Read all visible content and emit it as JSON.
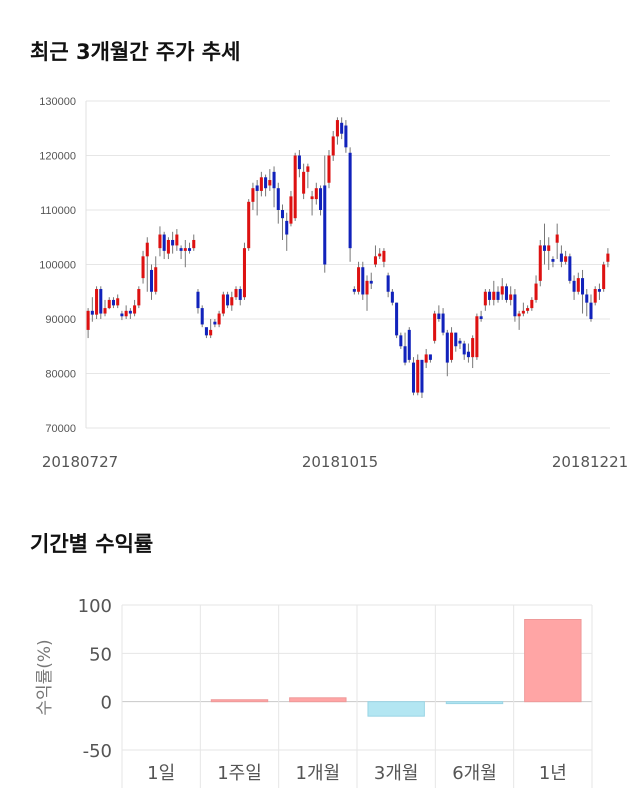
{
  "section1": {
    "title": "최근 3개월간 주가 추세"
  },
  "section2": {
    "title": "기간별 수익률"
  },
  "colors": {
    "up": "#dd1111",
    "down": "#1122bb",
    "grid": "#e6e6e6",
    "positive_bar": "#ffa5a5",
    "negative_bar": "#b3e6f2"
  },
  "chart_data": [
    {
      "type": "candlestick",
      "title": "최근 3개월간 주가 추세",
      "ylim": [
        70000,
        130000
      ],
      "yticks": [
        "130000",
        "120000",
        "110000",
        "100000",
        "90000",
        "80000",
        "70000"
      ],
      "ytick_values": [
        130000,
        120000,
        110000,
        100000,
        90000,
        80000,
        70000
      ],
      "x_labels": [
        "20180727",
        "20181015",
        "20181221"
      ],
      "grid": true,
      "candles": [
        [
          88000,
          91500,
          86500,
          92000
        ],
        [
          91500,
          90800,
          89500,
          94000
        ],
        [
          90800,
          95500,
          90000,
          96000
        ],
        [
          95500,
          91000,
          90000,
          96000
        ],
        [
          91000,
          92000,
          90500,
          93500
        ],
        [
          92000,
          93500,
          91800,
          94000
        ],
        [
          93500,
          92500,
          92000,
          94000
        ],
        [
          92500,
          93800,
          92000,
          94500
        ],
        [
          91000,
          90500,
          89800,
          91500
        ],
        [
          90500,
          91500,
          90000,
          92500
        ],
        [
          91500,
          91000,
          90000,
          92000
        ],
        [
          91000,
          92500,
          90500,
          93500
        ],
        [
          92500,
          95500,
          92000,
          96000
        ],
        [
          97500,
          101500,
          96500,
          102500
        ],
        [
          101500,
          104000,
          95000,
          105000
        ],
        [
          99000,
          95000,
          93500,
          100000
        ],
        [
          95000,
          99500,
          94500,
          101500
        ],
        [
          103000,
          105500,
          101500,
          107000
        ],
        [
          105500,
          102500,
          101000,
          106000
        ],
        [
          102000,
          104500,
          101000,
          105000
        ],
        [
          104500,
          103500,
          102000,
          106000
        ],
        [
          103500,
          105500,
          102500,
          106500
        ],
        [
          103000,
          102500,
          101000,
          103500
        ],
        [
          102500,
          103000,
          99500,
          104500
        ],
        [
          103000,
          102500,
          102000,
          104000
        ],
        [
          103000,
          104500,
          102500,
          105500
        ],
        [
          95000,
          92000,
          91000,
          95500
        ],
        [
          92000,
          89000,
          88500,
          92500
        ],
        [
          88500,
          87000,
          86500,
          88000
        ],
        [
          87000,
          88000,
          86500,
          90000
        ],
        [
          89500,
          89000,
          88500,
          90000
        ],
        [
          89000,
          91000,
          88500,
          91500
        ],
        [
          91000,
          94500,
          90500,
          95000
        ],
        [
          94500,
          92500,
          92000,
          95000
        ],
        [
          92500,
          94000,
          91500,
          95000
        ],
        [
          94000,
          95500,
          93500,
          96000
        ],
        [
          95500,
          93500,
          92500,
          96000
        ],
        [
          94000,
          103000,
          93500,
          104000
        ],
        [
          103000,
          111500,
          102500,
          112000
        ],
        [
          111500,
          114000,
          110000,
          115000
        ],
        [
          114500,
          113500,
          109000,
          115500
        ],
        [
          113500,
          116000,
          112500,
          117000
        ],
        [
          116000,
          114000,
          112500,
          116500
        ],
        [
          114500,
          115500,
          113500,
          117500
        ],
        [
          117000,
          114000,
          110500,
          118000
        ],
        [
          114000,
          110000,
          107500,
          115000
        ],
        [
          110000,
          108500,
          104500,
          111000
        ],
        [
          108000,
          105500,
          102500,
          109500
        ],
        [
          107500,
          112500,
          107000,
          113500
        ],
        [
          108500,
          120000,
          108000,
          120500
        ],
        [
          120000,
          117500,
          116000,
          121000
        ],
        [
          113000,
          117000,
          112000,
          118500
        ],
        [
          117000,
          118000,
          114000,
          118500
        ],
        [
          112000,
          112500,
          109000,
          113500
        ],
        [
          112000,
          114000,
          111000,
          115000
        ],
        [
          114000,
          110000,
          109000,
          114500
        ],
        [
          114500,
          100000,
          98500,
          120000
        ],
        [
          115000,
          120000,
          114000,
          121000
        ],
        [
          120000,
          123500,
          119000,
          124500
        ],
        [
          123500,
          126500,
          122000,
          127000
        ],
        [
          126000,
          124000,
          123000,
          127000
        ],
        [
          125500,
          121500,
          120500,
          126500
        ],
        [
          120500,
          103000,
          100500,
          121500
        ],
        [
          95500,
          95000,
          94500,
          96000
        ],
        [
          95000,
          99500,
          94500,
          100500
        ],
        [
          99500,
          94500,
          93500,
          100500
        ],
        [
          94500,
          97000,
          91500,
          98000
        ],
        [
          97000,
          96500,
          95500,
          98500
        ],
        [
          100000,
          101500,
          99500,
          103500
        ],
        [
          101500,
          102000,
          101000,
          103000
        ],
        [
          100500,
          102500,
          99500,
          103000
        ],
        [
          98000,
          95000,
          94000,
          98500
        ],
        [
          95000,
          93000,
          92500,
          95500
        ],
        [
          93000,
          87000,
          86500,
          93000
        ],
        [
          87000,
          85000,
          84500,
          87500
        ],
        [
          85000,
          82000,
          81500,
          87500
        ],
        [
          88000,
          82500,
          82000,
          88500
        ],
        [
          82000,
          76500,
          76000,
          83000
        ],
        [
          76500,
          82500,
          76000,
          83500
        ],
        [
          82500,
          76500,
          75500,
          82500
        ],
        [
          82000,
          83500,
          81000,
          84500
        ],
        [
          83500,
          82500,
          82000,
          83500
        ],
        [
          86000,
          91000,
          85500,
          91500
        ],
        [
          91000,
          90000,
          89500,
          92500
        ],
        [
          91000,
          87500,
          87000,
          92000
        ],
        [
          87500,
          82000,
          79500,
          88000
        ],
        [
          82500,
          87500,
          82000,
          88500
        ],
        [
          87500,
          85000,
          84000,
          87500
        ],
        [
          86000,
          85500,
          84500,
          86500
        ],
        [
          85500,
          83500,
          82500,
          86000
        ],
        [
          84000,
          83000,
          82000,
          85500
        ],
        [
          83000,
          86500,
          81000,
          87000
        ],
        [
          83000,
          90500,
          82500,
          91000
        ],
        [
          90500,
          90000,
          89500,
          91500
        ],
        [
          92500,
          95000,
          91500,
          95500
        ],
        [
          95000,
          93500,
          92500,
          95500
        ],
        [
          93500,
          95000,
          92500,
          97000
        ],
        [
          95000,
          93500,
          93000,
          96000
        ],
        [
          94500,
          96000,
          93500,
          97500
        ],
        [
          96000,
          93500,
          93000,
          96500
        ],
        [
          93500,
          94500,
          92500,
          96000
        ],
        [
          94500,
          90500,
          89500,
          95500
        ],
        [
          90500,
          91000,
          88000,
          91500
        ],
        [
          91000,
          91500,
          90500,
          93000
        ],
        [
          91500,
          92000,
          91000,
          92500
        ],
        [
          92000,
          93500,
          91500,
          94000
        ],
        [
          93500,
          96500,
          93000,
          98000
        ],
        [
          97000,
          103500,
          96000,
          104500
        ],
        [
          103500,
          102500,
          100000,
          107500
        ],
        [
          102500,
          103500,
          99000,
          105000
        ],
        [
          101000,
          100500,
          99500,
          101500
        ],
        [
          104000,
          105500,
          101000,
          107500
        ],
        [
          102000,
          100500,
          99500,
          103500
        ],
        [
          100500,
          101500,
          100000,
          102500
        ],
        [
          101500,
          97000,
          96500,
          102000
        ],
        [
          97000,
          95000,
          93500,
          98000
        ],
        [
          95000,
          97500,
          94500,
          98500
        ],
        [
          97500,
          94500,
          91000,
          99000
        ],
        [
          94500,
          93000,
          90500,
          95500
        ],
        [
          93000,
          90000,
          89500,
          94500
        ],
        [
          93000,
          95500,
          92500,
          96000
        ],
        [
          95500,
          95000,
          93500,
          96500
        ],
        [
          95500,
          100000,
          95000,
          100500
        ],
        [
          100500,
          102000,
          99500,
          103000
        ]
      ]
    },
    {
      "type": "bar",
      "title": "기간별 수익률",
      "ylabel": "수익률(%)",
      "ylim": [
        -50,
        100
      ],
      "yticks": [
        "100",
        "50",
        "0",
        "-50"
      ],
      "ytick_values": [
        100,
        50,
        0,
        -50
      ],
      "categories": [
        "1일",
        "1주일",
        "1개월",
        "3개월",
        "6개월",
        "1년"
      ],
      "values": [
        0,
        2,
        4,
        -15,
        -2,
        85
      ],
      "grid": true
    }
  ]
}
